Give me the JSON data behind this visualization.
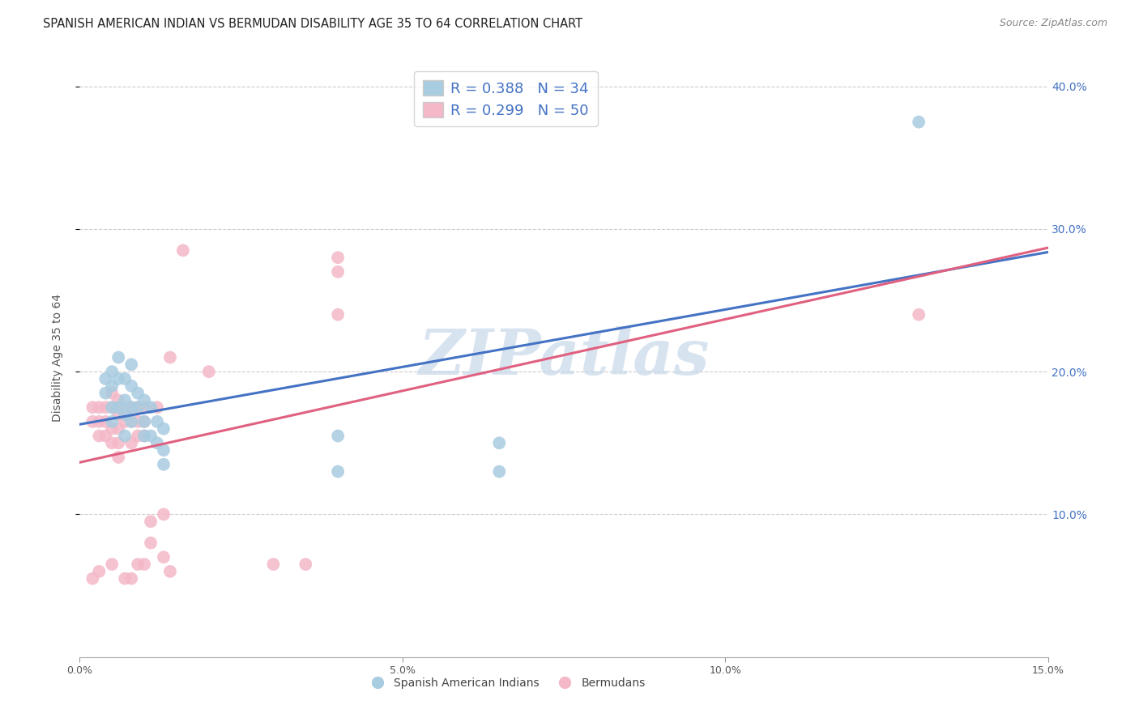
{
  "title": "SPANISH AMERICAN INDIAN VS BERMUDAN DISABILITY AGE 35 TO 64 CORRELATION CHART",
  "source": "Source: ZipAtlas.com",
  "ylabel": "Disability Age 35 to 64",
  "xlim": [
    0.0,
    0.15
  ],
  "ylim": [
    0.0,
    0.42
  ],
  "xticks": [
    0.0,
    0.05,
    0.1,
    0.15
  ],
  "xticklabels": [
    "0.0%",
    "5.0%",
    "10.0%",
    "15.0%"
  ],
  "yticks": [
    0.1,
    0.2,
    0.3,
    0.4
  ],
  "yticklabels": [
    "10.0%",
    "20.0%",
    "30.0%",
    "40.0%"
  ],
  "blue_R": 0.388,
  "blue_N": 34,
  "pink_R": 0.299,
  "pink_N": 50,
  "blue_color": "#a8cce0",
  "pink_color": "#f4b8c8",
  "blue_line_color": "#4472c4",
  "pink_line_color": "#e06080",
  "watermark_text": "ZIPatlas",
  "watermark_color": "#c8d8ea",
  "legend_box_blue": "#a8cce0",
  "legend_box_pink": "#f4b8c8",
  "legend_text_color": "#4472c4",
  "bottom_legend_label1": "Spanish American Indians",
  "bottom_legend_label2": "Bermudans",
  "blue_scatter_x": [
    0.004,
    0.004,
    0.005,
    0.005,
    0.005,
    0.005,
    0.006,
    0.006,
    0.006,
    0.007,
    0.007,
    0.007,
    0.007,
    0.008,
    0.008,
    0.008,
    0.008,
    0.009,
    0.009,
    0.01,
    0.01,
    0.01,
    0.011,
    0.011,
    0.012,
    0.012,
    0.013,
    0.013,
    0.013,
    0.04,
    0.04,
    0.065,
    0.065,
    0.13
  ],
  "blue_scatter_y": [
    0.195,
    0.185,
    0.2,
    0.19,
    0.175,
    0.165,
    0.21,
    0.195,
    0.175,
    0.195,
    0.18,
    0.17,
    0.155,
    0.205,
    0.19,
    0.175,
    0.165,
    0.185,
    0.175,
    0.18,
    0.165,
    0.155,
    0.175,
    0.155,
    0.165,
    0.15,
    0.16,
    0.145,
    0.135,
    0.155,
    0.13,
    0.15,
    0.13,
    0.375
  ],
  "pink_scatter_x": [
    0.002,
    0.002,
    0.002,
    0.003,
    0.003,
    0.003,
    0.003,
    0.004,
    0.004,
    0.004,
    0.005,
    0.005,
    0.005,
    0.005,
    0.005,
    0.006,
    0.006,
    0.006,
    0.006,
    0.006,
    0.007,
    0.007,
    0.007,
    0.008,
    0.008,
    0.008,
    0.008,
    0.009,
    0.009,
    0.009,
    0.009,
    0.01,
    0.01,
    0.01,
    0.01,
    0.011,
    0.011,
    0.012,
    0.013,
    0.013,
    0.014,
    0.014,
    0.016,
    0.02,
    0.03,
    0.035,
    0.04,
    0.04,
    0.04,
    0.13
  ],
  "pink_scatter_y": [
    0.175,
    0.165,
    0.055,
    0.175,
    0.165,
    0.155,
    0.06,
    0.175,
    0.165,
    0.155,
    0.185,
    0.175,
    0.16,
    0.15,
    0.065,
    0.18,
    0.17,
    0.16,
    0.15,
    0.14,
    0.175,
    0.165,
    0.055,
    0.175,
    0.165,
    0.15,
    0.055,
    0.175,
    0.165,
    0.155,
    0.065,
    0.175,
    0.165,
    0.155,
    0.065,
    0.095,
    0.08,
    0.175,
    0.1,
    0.07,
    0.21,
    0.06,
    0.285,
    0.2,
    0.065,
    0.065,
    0.28,
    0.27,
    0.24,
    0.24
  ],
  "title_fontsize": 10.5,
  "source_fontsize": 9,
  "axis_label_fontsize": 10,
  "tick_fontsize": 9,
  "legend_fontsize": 13
}
